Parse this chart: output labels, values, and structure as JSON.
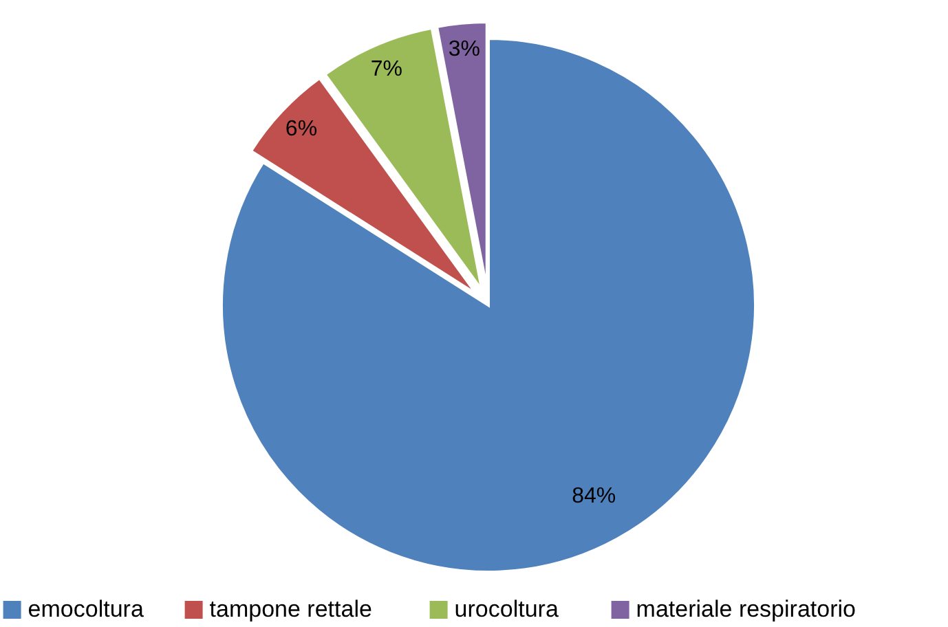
{
  "chart_data": {
    "type": "pie",
    "categories": [
      "emocoltura",
      "tampone rettale",
      "urocoltura",
      "materiale respiratorio"
    ],
    "values": [
      84,
      6,
      7,
      3
    ],
    "colors": [
      "#4f81bd",
      "#c0504d",
      "#9bbb59",
      "#8064a2"
    ],
    "value_labels": [
      "84%",
      "6%",
      "7%",
      "3%"
    ],
    "legend": "bottom"
  }
}
